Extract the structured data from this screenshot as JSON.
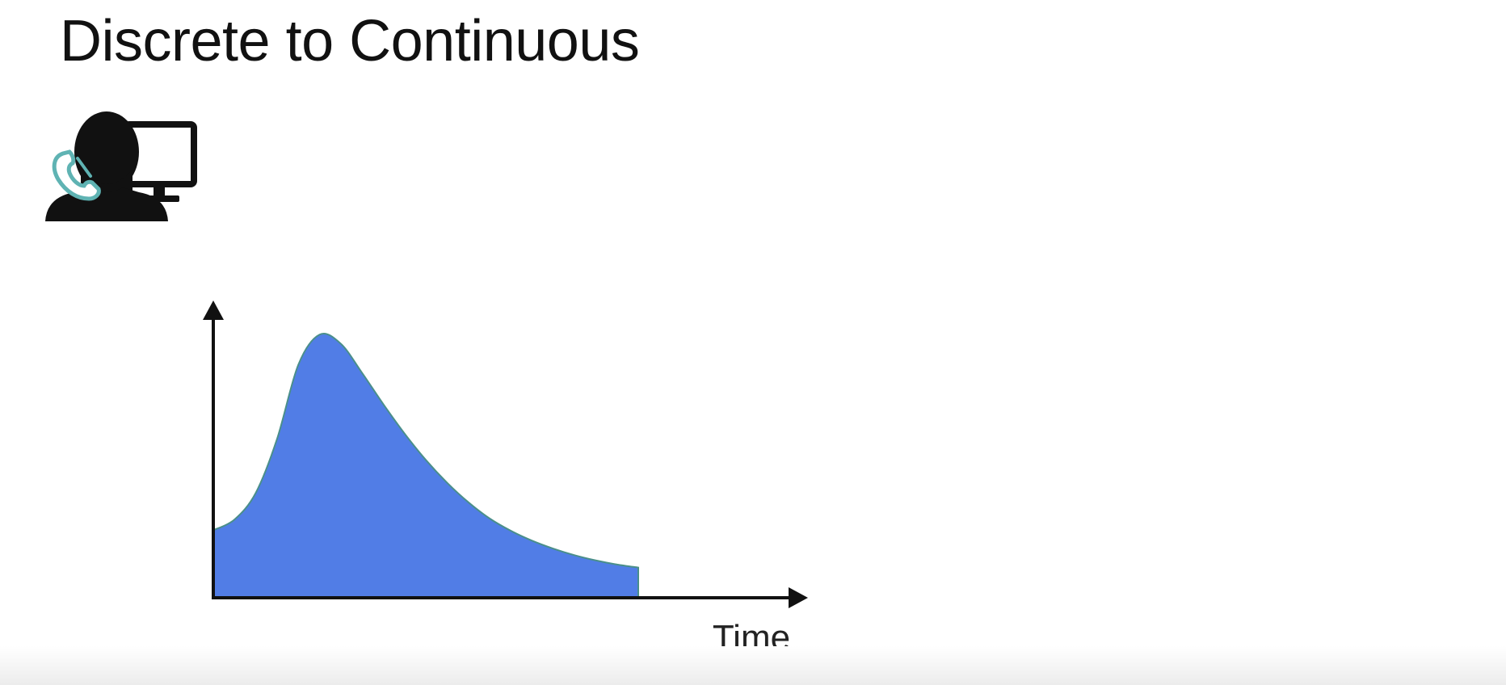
{
  "slide": {
    "title": "Discrete to Continuous",
    "icon": "call-center-agent-icon"
  },
  "colors": {
    "fill": "#517DE6",
    "outline": "#4A8F8A",
    "axis": "#111111",
    "phone": "#5FB3B3"
  },
  "chart_data": {
    "type": "area",
    "title": "",
    "xlabel": "Time",
    "ylabel": "",
    "xlim": [
      0,
      100
    ],
    "ylim": [
      0,
      100
    ],
    "grid": false,
    "legend": "none",
    "series": [
      {
        "name": "density",
        "x": [
          0,
          5,
          10,
          15,
          20,
          25,
          30,
          35,
          40,
          45,
          50,
          55,
          60,
          65,
          70,
          75,
          80,
          85,
          90,
          95,
          100
        ],
        "values": [
          24.6,
          28.5,
          38.2,
          57.8,
          84.8,
          95.8,
          92.5,
          81.9,
          70.5,
          59.8,
          50.2,
          41.9,
          34.8,
          28.9,
          24.4,
          20.8,
          17.9,
          15.5,
          13.6,
          12.1,
          11.0
        ]
      }
    ]
  }
}
